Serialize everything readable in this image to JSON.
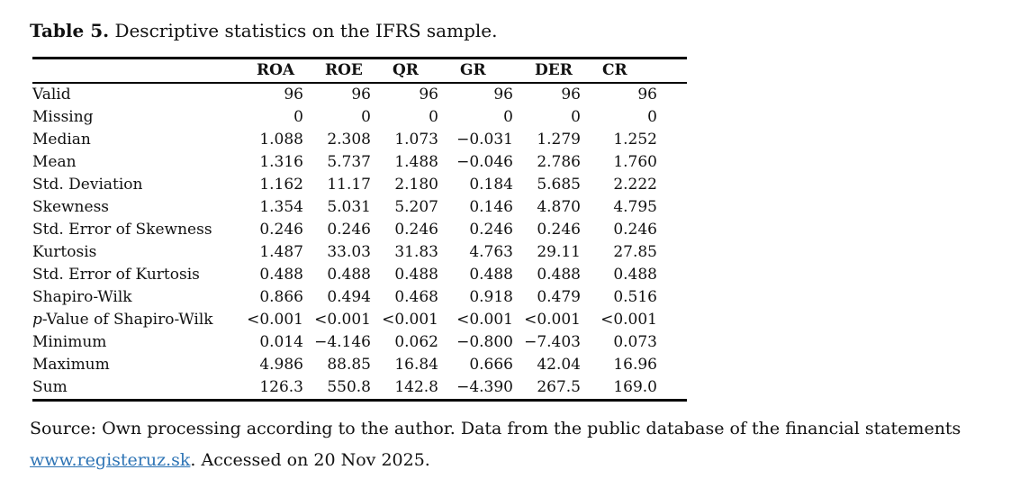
{
  "caption": {
    "label": "Table 5.",
    "text": "Descriptive statistics on the IFRS sample."
  },
  "table": {
    "columns": [
      "ROA",
      "ROE",
      "QR",
      "GR",
      "DER",
      "CR"
    ],
    "rows": [
      {
        "label": "Valid",
        "values": [
          "96",
          "96",
          "96",
          "96",
          "96",
          "96"
        ]
      },
      {
        "label": "Missing",
        "values": [
          "0",
          "0",
          "0",
          "0",
          "0",
          "0"
        ]
      },
      {
        "label": "Median",
        "values": [
          "1.088",
          "2.308",
          "1.073",
          "−0.031",
          "1.279",
          "1.252"
        ]
      },
      {
        "label": "Mean",
        "values": [
          "1.316",
          "5.737",
          "1.488",
          "−0.046",
          "2.786",
          "1.760"
        ]
      },
      {
        "label": "Std. Deviation",
        "values": [
          "1.162",
          "11.17",
          "2.180",
          "0.184",
          "5.685",
          "2.222"
        ]
      },
      {
        "label": "Skewness",
        "values": [
          "1.354",
          "5.031",
          "5.207",
          "0.146",
          "4.870",
          "4.795"
        ]
      },
      {
        "label": "Std. Error of Skewness",
        "values": [
          "0.246",
          "0.246",
          "0.246",
          "0.246",
          "0.246",
          "0.246"
        ]
      },
      {
        "label": "Kurtosis",
        "values": [
          "1.487",
          "33.03",
          "31.83",
          "4.763",
          "29.11",
          "27.85"
        ]
      },
      {
        "label": "Std. Error of Kurtosis",
        "values": [
          "0.488",
          "0.488",
          "0.488",
          "0.488",
          "0.488",
          "0.488"
        ]
      },
      {
        "label": "Shapiro-Wilk",
        "values": [
          "0.866",
          "0.494",
          "0.468",
          "0.918",
          "0.479",
          "0.516"
        ]
      },
      {
        "label": "p-Value of Shapiro-Wilk",
        "italic_first": true,
        "values": [
          "<0.001",
          "<0.001",
          "<0.001",
          "<0.001",
          "<0.001",
          "<0.001"
        ]
      },
      {
        "label": "Minimum",
        "values": [
          "0.014",
          "−4.146",
          "0.062",
          "−0.800",
          "−7.403",
          "0.073"
        ]
      },
      {
        "label": "Maximum",
        "values": [
          "4.986",
          "88.85",
          "16.84",
          "0.666",
          "42.04",
          "16.96"
        ]
      },
      {
        "label": "Sum",
        "values": [
          "126.3",
          "550.8",
          "142.8",
          "−4.390",
          "267.5",
          "169.0"
        ]
      }
    ]
  },
  "source": {
    "line1": "Source: Own processing according to the author. Data from the public database of the financial statements",
    "link_text": "www.registeruz.sk",
    "line2_suffix": ". Accessed on 20 Nov 2025."
  },
  "colors": {
    "link_blue": "#2e74b5",
    "text": "#111111",
    "rule": "#000000"
  }
}
